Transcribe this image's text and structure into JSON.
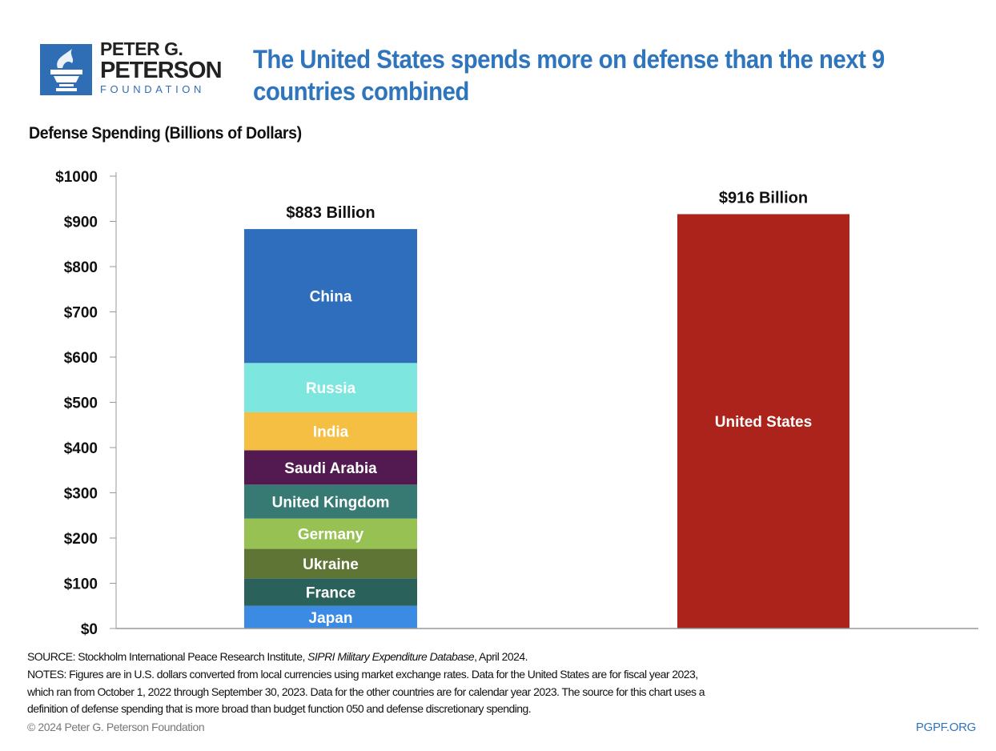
{
  "logo": {
    "line1": "PETER G.",
    "line2": "PETERSON",
    "line3": "FOUNDATION",
    "brand_color": "#2f6db5"
  },
  "title": "The United States spends more on defense than the next 9 countries combined",
  "subtitle": "Defense Spending (Billions of Dollars)",
  "chart_data": {
    "type": "bar",
    "stacked": true,
    "ylim": [
      0,
      1000
    ],
    "yticks": [
      0,
      100,
      200,
      300,
      400,
      500,
      600,
      700,
      800,
      900,
      1000
    ],
    "ytick_labels": [
      "$0",
      "$100",
      "$200",
      "$300",
      "$400",
      "$500",
      "$600",
      "$700",
      "$800",
      "$900",
      "$1000"
    ],
    "grid": false,
    "bars": [
      {
        "total_label": "$883 Billion",
        "segments": [
          {
            "name": "Japan",
            "value": 50,
            "color": "#3b8ae3"
          },
          {
            "name": "France",
            "value": 61,
            "color": "#2a615a"
          },
          {
            "name": "Ukraine",
            "value": 65,
            "color": "#5e7535"
          },
          {
            "name": "Germany",
            "value": 67,
            "color": "#97c152"
          },
          {
            "name": "United Kingdom",
            "value": 75,
            "color": "#377a73"
          },
          {
            "name": "Saudi Arabia",
            "value": 76,
            "color": "#521a50"
          },
          {
            "name": "India",
            "value": 84,
            "color": "#f4bf42"
          },
          {
            "name": "Russia",
            "value": 109,
            "color": "#7de6de"
          },
          {
            "name": "China",
            "value": 296,
            "color": "#2f6dbd"
          }
        ]
      },
      {
        "total_label": "$916 Billion",
        "segments": [
          {
            "name": "United States",
            "value": 916,
            "color": "#ab231b"
          }
        ]
      }
    ]
  },
  "footer": {
    "source_prefix": "SOURCE: Stockholm International Peace Research Institute, ",
    "source_italic": "SIPRI Military Expenditure Database",
    "source_suffix": ", April 2024.",
    "notes_lines": [
      "NOTES: Figures are in U.S. dollars converted from local currencies using market exchange rates. Data for the United States are for fiscal year 2023,",
      "which ran from October 1, 2022 through September 30, 2023. Data for the other countries are for calendar year 2023. The source for this chart uses a",
      "definition of defense spending that is more broad than budget function 050 and defense discretionary spending."
    ],
    "copyright": "© 2024 Peter G. Peterson Foundation",
    "site": "PGPF.ORG"
  }
}
